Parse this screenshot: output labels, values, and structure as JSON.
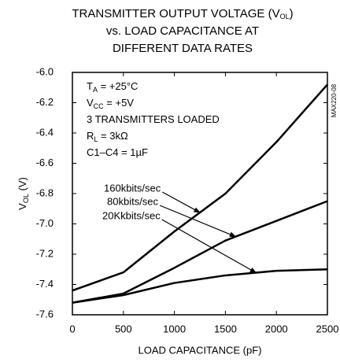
{
  "chart_data": {
    "type": "line",
    "title": [
      [
        {
          "text": "TRANSMITTER OUTPUT VOLTAGE (V"
        },
        {
          "sub": "OL"
        },
        {
          "text": ")"
        }
      ],
      [
        {
          "text": "vs. LOAD CAPACITANCE AT"
        }
      ],
      [
        {
          "text": "DIFFERENT DATA RATES"
        }
      ]
    ],
    "y_label": [
      {
        "text": "V"
      },
      {
        "sub": "OL"
      },
      {
        "text": " (V)"
      }
    ],
    "x_label": "LOAD CAPACITANCE (pF)",
    "side_note": "MAX220-08",
    "annotations": [
      [
        {
          "text": "T"
        },
        {
          "sub": "A"
        },
        {
          "text": " = +25°C"
        }
      ],
      [
        {
          "text": "V"
        },
        {
          "sub": "CC"
        },
        {
          "text": " = +5V"
        }
      ],
      [
        {
          "text": "3 TRANSMITTERS LOADED"
        }
      ],
      [
        {
          "text": "R"
        },
        {
          "sub": "L"
        },
        {
          "text": " = 3kΩ"
        }
      ],
      [
        {
          "text": "C1–C4 = 1µF"
        }
      ]
    ],
    "x": [
      0,
      500,
      1000,
      1500,
      2000,
      2500
    ],
    "series": [
      {
        "name": "160kbits/sec",
        "color": "#000000",
        "values": [
          -7.44,
          -7.32,
          -7.05,
          -6.8,
          -6.46,
          -6.08
        ]
      },
      {
        "name": "80kbits/sec",
        "color": "#000000",
        "values": [
          -7.52,
          -7.46,
          -7.29,
          -7.11,
          -6.98,
          -6.85
        ]
      },
      {
        "name": "20Kkbits/sec",
        "color": "#000000",
        "values": [
          -7.52,
          -7.47,
          -7.39,
          -7.34,
          -7.31,
          -7.3
        ]
      }
    ],
    "xlim": [
      0,
      2500
    ],
    "xticks": [
      0,
      500,
      1000,
      1500,
      2000,
      2500
    ],
    "ylim": [
      -7.6,
      -6
    ],
    "yticks": [
      {
        "value": -6,
        "label": "-6.0"
      },
      -6.2,
      -6.4,
      -6.6,
      -6.8,
      {
        "value": -7,
        "label": "-7.0"
      },
      -7.2,
      -7.4,
      -7.6
    ],
    "grid": false
  }
}
